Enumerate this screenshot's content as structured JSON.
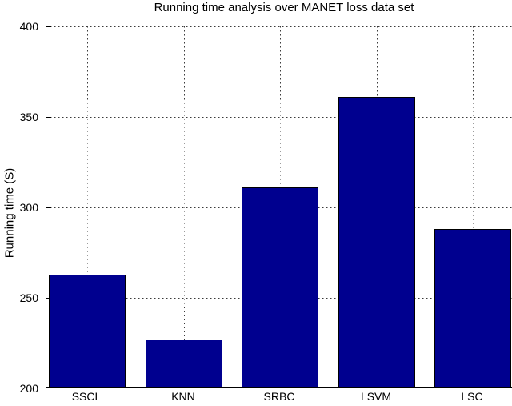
{
  "figure": {
    "background_color": "#ffffff",
    "text_color": "#000000",
    "grid_dot_color": "#3a3a3a"
  },
  "chart_data": {
    "type": "bar",
    "title": "Running time analysis over MANET loss data set",
    "xlabel": "",
    "ylabel": "Running time (S)",
    "categories": [
      "SSCL",
      "KNN",
      "SRBC",
      "LSVM",
      "LSC"
    ],
    "values": [
      262,
      226,
      310,
      360,
      287
    ],
    "ylim": [
      200,
      400
    ],
    "yticks": [
      200,
      250,
      300,
      350,
      400
    ],
    "grid": "dotted",
    "legend": "none",
    "bar_color": "#00008F",
    "bar_edge_color": "#000000"
  }
}
